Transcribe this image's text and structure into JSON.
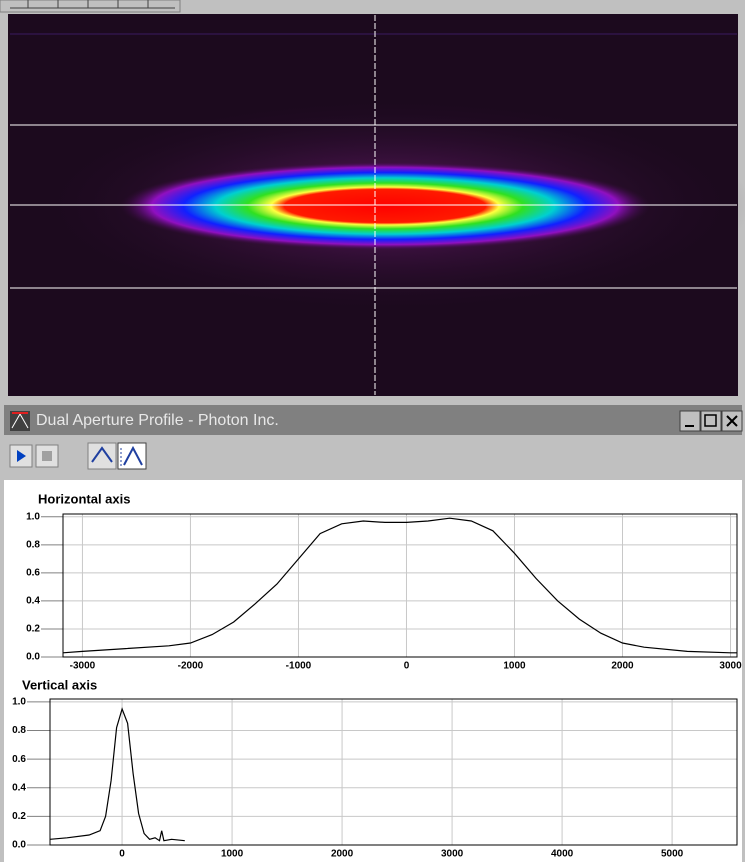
{
  "window": {
    "title": "Dual Aperture Profile - Photon Inc."
  },
  "chart_data": [
    {
      "type": "line",
      "title": "Horizontal axis",
      "color": "#000000",
      "grid": true,
      "xlim": [
        -3180,
        3060
      ],
      "ylim": [
        0,
        1.02
      ],
      "xticks": [
        -3000,
        -2000,
        -1000,
        0,
        1000,
        2000,
        3000
      ],
      "yticks": [
        {
          "value": 0,
          "label": "0.0"
        },
        {
          "value": 0.2,
          "label": "0.2"
        },
        {
          "value": 0.4,
          "label": "0.4"
        },
        {
          "value": 0.6,
          "label": "0.6"
        },
        {
          "value": 0.8,
          "label": "0.8"
        },
        {
          "value": 1,
          "label": "1.0"
        }
      ],
      "x": [
        -3180,
        -3000,
        -2600,
        -2200,
        -2000,
        -1800,
        -1600,
        -1400,
        -1200,
        -1000,
        -800,
        -600,
        -400,
        -200,
        0,
        200,
        400,
        600,
        800,
        1000,
        1200,
        1400,
        1600,
        1800,
        2000,
        2200,
        2600,
        3000,
        3060
      ],
      "values": [
        0.03,
        0.04,
        0.06,
        0.08,
        0.1,
        0.16,
        0.25,
        0.38,
        0.52,
        0.7,
        0.88,
        0.95,
        0.97,
        0.96,
        0.96,
        0.97,
        0.99,
        0.97,
        0.9,
        0.74,
        0.56,
        0.4,
        0.27,
        0.17,
        0.1,
        0.07,
        0.04,
        0.03,
        0.03
      ]
    },
    {
      "type": "line",
      "title": "Vertical axis",
      "color": "#000000",
      "grid": true,
      "xlim": [
        -655,
        5590
      ],
      "ylim": [
        0,
        1.02
      ],
      "xticks": [
        0,
        1000,
        2000,
        3000,
        4000,
        5000
      ],
      "yticks": [
        {
          "value": 0,
          "label": "0.0"
        },
        {
          "value": 0.2,
          "label": "0.2"
        },
        {
          "value": 0.4,
          "label": "0.4"
        },
        {
          "value": 0.6,
          "label": "0.6"
        },
        {
          "value": 0.8,
          "label": "0.8"
        },
        {
          "value": 1,
          "label": "1.0"
        }
      ],
      "x": [
        -655,
        -500,
        -300,
        -200,
        -150,
        -100,
        -50,
        0,
        50,
        100,
        150,
        200,
        250,
        300,
        340,
        360,
        380,
        450,
        570
      ],
      "values": [
        0.04,
        0.05,
        0.07,
        0.1,
        0.2,
        0.45,
        0.82,
        0.95,
        0.85,
        0.5,
        0.22,
        0.08,
        0.04,
        0.05,
        0.03,
        0.1,
        0.03,
        0.04,
        0.03
      ]
    }
  ]
}
